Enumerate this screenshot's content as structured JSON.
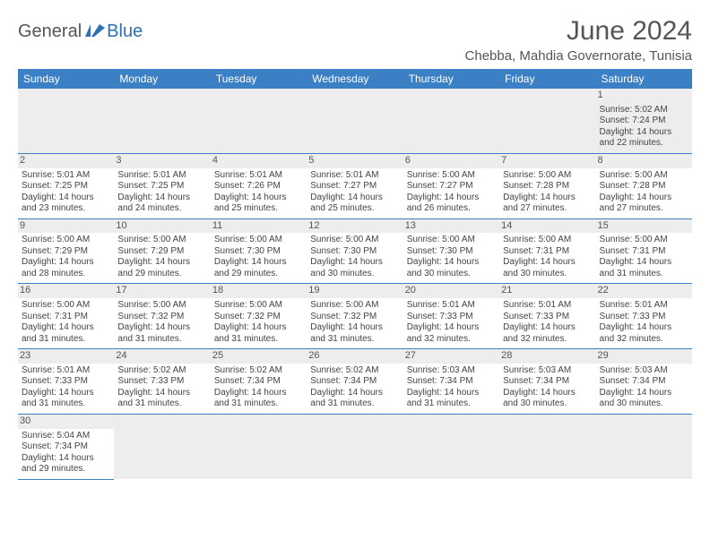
{
  "logo": {
    "part1": "General",
    "part2": "Blue"
  },
  "title": "June 2024",
  "location": "Chebba, Mahdia Governorate, Tunisia",
  "colors": {
    "header_bg": "#3b7fc4",
    "header_text": "#ffffff",
    "daynum_bg": "#ededed",
    "border": "#3b7fc4",
    "text": "#444444",
    "title_text": "#555555"
  },
  "weekdays": [
    "Sunday",
    "Monday",
    "Tuesday",
    "Wednesday",
    "Thursday",
    "Friday",
    "Saturday"
  ],
  "weeks": [
    [
      null,
      null,
      null,
      null,
      null,
      null,
      {
        "d": "1",
        "sr": "5:02 AM",
        "ss": "7:24 PM",
        "dl": "14 hours and 22 minutes."
      }
    ],
    [
      {
        "d": "2",
        "sr": "5:01 AM",
        "ss": "7:25 PM",
        "dl": "14 hours and 23 minutes."
      },
      {
        "d": "3",
        "sr": "5:01 AM",
        "ss": "7:25 PM",
        "dl": "14 hours and 24 minutes."
      },
      {
        "d": "4",
        "sr": "5:01 AM",
        "ss": "7:26 PM",
        "dl": "14 hours and 25 minutes."
      },
      {
        "d": "5",
        "sr": "5:01 AM",
        "ss": "7:27 PM",
        "dl": "14 hours and 25 minutes."
      },
      {
        "d": "6",
        "sr": "5:00 AM",
        "ss": "7:27 PM",
        "dl": "14 hours and 26 minutes."
      },
      {
        "d": "7",
        "sr": "5:00 AM",
        "ss": "7:28 PM",
        "dl": "14 hours and 27 minutes."
      },
      {
        "d": "8",
        "sr": "5:00 AM",
        "ss": "7:28 PM",
        "dl": "14 hours and 27 minutes."
      }
    ],
    [
      {
        "d": "9",
        "sr": "5:00 AM",
        "ss": "7:29 PM",
        "dl": "14 hours and 28 minutes."
      },
      {
        "d": "10",
        "sr": "5:00 AM",
        "ss": "7:29 PM",
        "dl": "14 hours and 29 minutes."
      },
      {
        "d": "11",
        "sr": "5:00 AM",
        "ss": "7:30 PM",
        "dl": "14 hours and 29 minutes."
      },
      {
        "d": "12",
        "sr": "5:00 AM",
        "ss": "7:30 PM",
        "dl": "14 hours and 30 minutes."
      },
      {
        "d": "13",
        "sr": "5:00 AM",
        "ss": "7:30 PM",
        "dl": "14 hours and 30 minutes."
      },
      {
        "d": "14",
        "sr": "5:00 AM",
        "ss": "7:31 PM",
        "dl": "14 hours and 30 minutes."
      },
      {
        "d": "15",
        "sr": "5:00 AM",
        "ss": "7:31 PM",
        "dl": "14 hours and 31 minutes."
      }
    ],
    [
      {
        "d": "16",
        "sr": "5:00 AM",
        "ss": "7:31 PM",
        "dl": "14 hours and 31 minutes."
      },
      {
        "d": "17",
        "sr": "5:00 AM",
        "ss": "7:32 PM",
        "dl": "14 hours and 31 minutes."
      },
      {
        "d": "18",
        "sr": "5:00 AM",
        "ss": "7:32 PM",
        "dl": "14 hours and 31 minutes."
      },
      {
        "d": "19",
        "sr": "5:00 AM",
        "ss": "7:32 PM",
        "dl": "14 hours and 31 minutes."
      },
      {
        "d": "20",
        "sr": "5:01 AM",
        "ss": "7:33 PM",
        "dl": "14 hours and 32 minutes."
      },
      {
        "d": "21",
        "sr": "5:01 AM",
        "ss": "7:33 PM",
        "dl": "14 hours and 32 minutes."
      },
      {
        "d": "22",
        "sr": "5:01 AM",
        "ss": "7:33 PM",
        "dl": "14 hours and 32 minutes."
      }
    ],
    [
      {
        "d": "23",
        "sr": "5:01 AM",
        "ss": "7:33 PM",
        "dl": "14 hours and 31 minutes."
      },
      {
        "d": "24",
        "sr": "5:02 AM",
        "ss": "7:33 PM",
        "dl": "14 hours and 31 minutes."
      },
      {
        "d": "25",
        "sr": "5:02 AM",
        "ss": "7:34 PM",
        "dl": "14 hours and 31 minutes."
      },
      {
        "d": "26",
        "sr": "5:02 AM",
        "ss": "7:34 PM",
        "dl": "14 hours and 31 minutes."
      },
      {
        "d": "27",
        "sr": "5:03 AM",
        "ss": "7:34 PM",
        "dl": "14 hours and 31 minutes."
      },
      {
        "d": "28",
        "sr": "5:03 AM",
        "ss": "7:34 PM",
        "dl": "14 hours and 30 minutes."
      },
      {
        "d": "29",
        "sr": "5:03 AM",
        "ss": "7:34 PM",
        "dl": "14 hours and 30 minutes."
      }
    ],
    [
      {
        "d": "30",
        "sr": "5:04 AM",
        "ss": "7:34 PM",
        "dl": "14 hours and 29 minutes."
      },
      null,
      null,
      null,
      null,
      null,
      null
    ]
  ],
  "labels": {
    "sunrise": "Sunrise: ",
    "sunset": "Sunset: ",
    "daylight": "Daylight: "
  }
}
